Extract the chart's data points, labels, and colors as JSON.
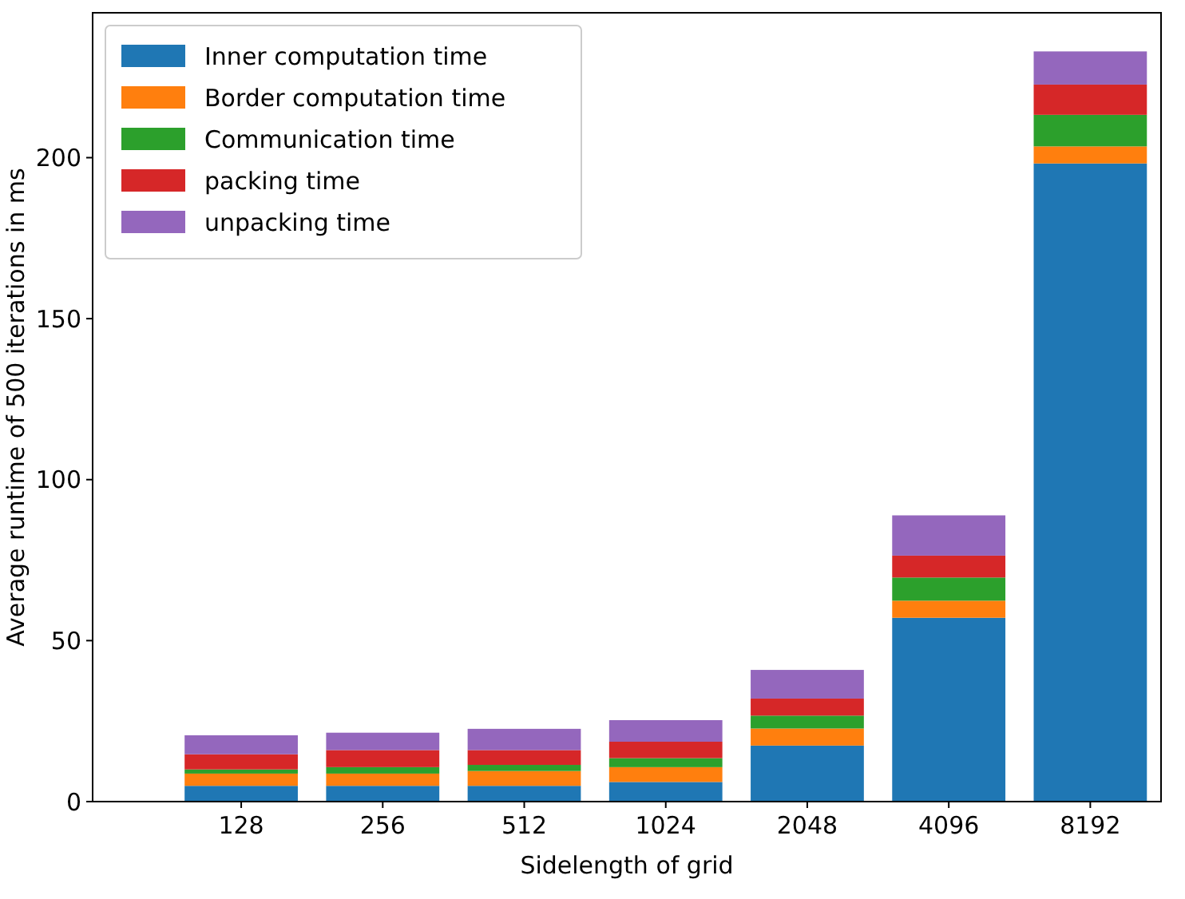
{
  "chart_data": {
    "type": "bar",
    "stacked": true,
    "xlabel": "Sidelength of grid",
    "ylabel": "Average runtime of 500 iterations in ms",
    "categories": [
      "128",
      "256",
      "512",
      "1024",
      "2048",
      "4096",
      "8192"
    ],
    "series": [
      {
        "name": "Inner computation time",
        "color": "#1f77b4",
        "values": [
          4.9,
          4.9,
          4.9,
          6.1,
          17.4,
          57.1,
          198.2
        ]
      },
      {
        "name": "Border computation time",
        "color": "#ff7f0e",
        "values": [
          3.8,
          3.8,
          4.6,
          4.6,
          5.3,
          5.3,
          5.3
        ]
      },
      {
        "name": "Communication time",
        "color": "#2ca02c",
        "values": [
          1.3,
          2.0,
          1.9,
          2.8,
          4.0,
          7.2,
          9.8
        ]
      },
      {
        "name": "packing time",
        "color": "#d62728",
        "values": [
          4.7,
          5.3,
          4.6,
          5.1,
          5.3,
          6.8,
          9.4
        ]
      },
      {
        "name": "unpacking time",
        "color": "#9467bd",
        "values": [
          5.9,
          5.4,
          6.6,
          6.7,
          8.9,
          12.5,
          10.3
        ]
      }
    ],
    "ylim": [
      0,
      245
    ],
    "yticks": [
      0,
      50,
      100,
      150,
      200
    ],
    "legend": "top left"
  }
}
